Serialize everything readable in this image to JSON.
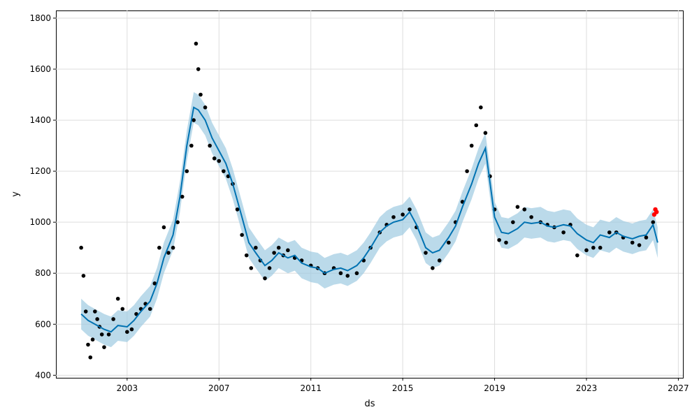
{
  "chart_data": {
    "type": "line",
    "title": "",
    "xlabel": "ds",
    "ylabel": "y",
    "xlim": [
      1999.9,
      2027.2
    ],
    "ylim": [
      390,
      1830
    ],
    "x_ticks": [
      2003,
      2007,
      2011,
      2015,
      2019,
      2023,
      2027
    ],
    "y_ticks": [
      400,
      600,
      800,
      1000,
      1200,
      1400,
      1600,
      1800
    ],
    "grid": true,
    "legend": "none",
    "colors": {
      "forecast_line": "#0072B2",
      "uncertainty_band": "#9ecae1",
      "observed_points": "#000000",
      "highlight_points": "#ff0000",
      "grid": "#dddddd"
    },
    "forecast": {
      "x": [
        2001.0,
        2001.3,
        2001.6,
        2002.0,
        2002.3,
        2002.6,
        2003.0,
        2003.3,
        2003.6,
        2004.0,
        2004.3,
        2004.6,
        2005.0,
        2005.3,
        2005.6,
        2005.9,
        2006.1,
        2006.4,
        2006.7,
        2007.0,
        2007.3,
        2007.6,
        2008.0,
        2008.3,
        2008.6,
        2009.0,
        2009.3,
        2009.6,
        2010.0,
        2010.3,
        2010.6,
        2011.0,
        2011.3,
        2011.6,
        2012.0,
        2012.3,
        2012.6,
        2013.0,
        2013.3,
        2013.6,
        2014.0,
        2014.3,
        2014.6,
        2015.0,
        2015.3,
        2015.6,
        2016.0,
        2016.3,
        2016.6,
        2017.0,
        2017.3,
        2017.6,
        2018.0,
        2018.3,
        2018.6,
        2019.0,
        2019.3,
        2019.6,
        2020.0,
        2020.3,
        2020.6,
        2021.0,
        2021.3,
        2021.6,
        2022.0,
        2022.3,
        2022.6,
        2023.0,
        2023.3,
        2023.6,
        2024.0,
        2024.3,
        2024.6,
        2025.0,
        2025.3,
        2025.6,
        2025.9,
        2026.1
      ],
      "yhat": [
        640,
        615,
        600,
        580,
        570,
        595,
        590,
        615,
        650,
        690,
        760,
        860,
        950,
        1100,
        1300,
        1450,
        1440,
        1400,
        1330,
        1280,
        1230,
        1150,
        1020,
        920,
        880,
        830,
        850,
        880,
        860,
        870,
        840,
        825,
        820,
        800,
        815,
        820,
        810,
        830,
        860,
        900,
        960,
        985,
        1000,
        1010,
        1040,
        990,
        900,
        880,
        890,
        940,
        985,
        1060,
        1150,
        1230,
        1290,
        1020,
        960,
        955,
        975,
        1000,
        995,
        1000,
        985,
        980,
        990,
        985,
        955,
        930,
        920,
        950,
        940,
        960,
        945,
        935,
        945,
        950,
        990,
        920
      ],
      "band_halfwidth": 60
    },
    "observed": {
      "x": [
        2001.0,
        2001.1,
        2001.2,
        2001.3,
        2001.4,
        2001.5,
        2001.6,
        2001.7,
        2001.8,
        2001.9,
        2002.0,
        2002.2,
        2002.4,
        2002.6,
        2002.8,
        2003.0,
        2003.2,
        2003.4,
        2003.6,
        2003.8,
        2004.0,
        2004.2,
        2004.4,
        2004.6,
        2004.8,
        2005.0,
        2005.2,
        2005.4,
        2005.6,
        2005.8,
        2005.9,
        2006.0,
        2006.1,
        2006.2,
        2006.4,
        2006.6,
        2006.8,
        2007.0,
        2007.2,
        2007.4,
        2007.6,
        2007.8,
        2008.0,
        2008.2,
        2008.4,
        2008.6,
        2008.8,
        2009.0,
        2009.2,
        2009.4,
        2009.6,
        2009.8,
        2010.0,
        2010.3,
        2010.6,
        2011.0,
        2011.3,
        2011.6,
        2012.0,
        2012.3,
        2012.6,
        2013.0,
        2013.3,
        2013.6,
        2014.0,
        2014.3,
        2014.6,
        2015.0,
        2015.3,
        2015.6,
        2016.0,
        2016.3,
        2016.6,
        2017.0,
        2017.3,
        2017.6,
        2017.8,
        2018.0,
        2018.2,
        2018.4,
        2018.6,
        2018.8,
        2019.0,
        2019.2,
        2019.5,
        2019.8,
        2020.0,
        2020.3,
        2020.6,
        2021.0,
        2021.3,
        2021.6,
        2022.0,
        2022.3,
        2022.6,
        2023.0,
        2023.3,
        2023.6,
        2024.0,
        2024.3,
        2024.6,
        2025.0,
        2025.3,
        2025.6,
        2025.9
      ],
      "y": [
        900,
        790,
        650,
        520,
        470,
        540,
        650,
        620,
        590,
        560,
        510,
        560,
        620,
        700,
        660,
        570,
        580,
        640,
        660,
        680,
        660,
        760,
        900,
        980,
        880,
        900,
        1000,
        1100,
        1200,
        1300,
        1400,
        1700,
        1600,
        1500,
        1450,
        1300,
        1250,
        1240,
        1200,
        1180,
        1150,
        1050,
        950,
        870,
        820,
        900,
        850,
        780,
        820,
        880,
        900,
        870,
        890,
        860,
        850,
        830,
        820,
        800,
        820,
        800,
        790,
        800,
        850,
        900,
        960,
        990,
        1020,
        1030,
        1050,
        980,
        880,
        820,
        850,
        920,
        1000,
        1080,
        1200,
        1300,
        1380,
        1450,
        1350,
        1180,
        1050,
        930,
        920,
        1000,
        1060,
        1050,
        1020,
        1000,
        990,
        980,
        960,
        990,
        870,
        890,
        900,
        900,
        960,
        960,
        940,
        920,
        910,
        940,
        1000
      ]
    },
    "highlight": {
      "x": [
        2025.95,
        2026.0,
        2026.05
      ],
      "y": [
        1030,
        1050,
        1040
      ]
    }
  }
}
